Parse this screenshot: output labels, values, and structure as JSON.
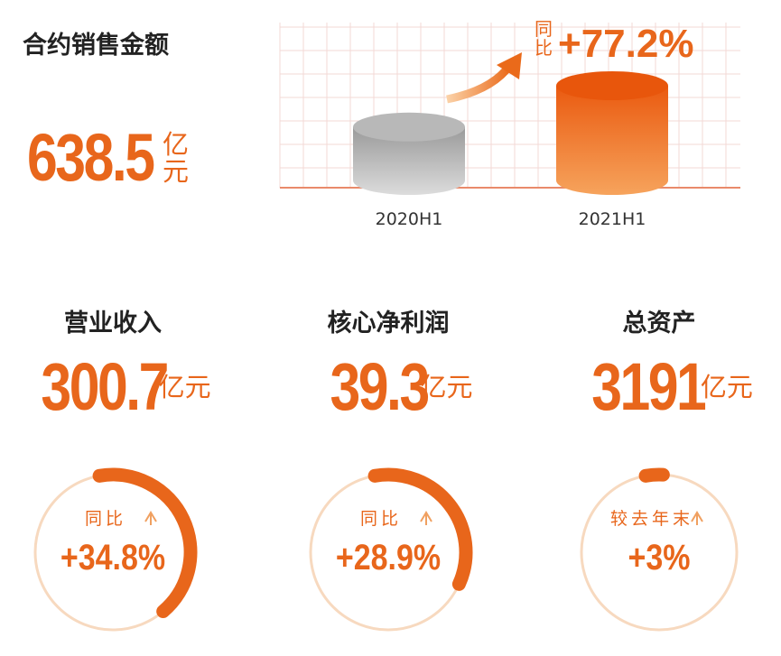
{
  "title": "合约销售金额",
  "amount": 638.5,
  "unit": "亿元",
  "chart": {
    "categories": [
      "2020H1",
      "2021H1"
    ],
    "values": [
      360,
      638.5
    ],
    "change_label": "同比",
    "change": "+77.2%"
  },
  "metrics": [
    {
      "title": "营业收入",
      "amount": 300.7,
      "unit": "亿元",
      "change_label": "同比",
      "change": {
        "value": 34.8,
        "label": "+34.8%"
      }
    },
    {
      "title": "核心净利润",
      "amount": 39.3,
      "unit": "亿元",
      "change_label": "同比",
      "change": {
        "value": 28.9,
        "label": "+28.9%"
      }
    },
    {
      "title": "总资产",
      "amount": 3191,
      "unit": "亿元",
      "change_label": "较去年末",
      "change": {
        "value": 3,
        "label": "+3%"
      }
    }
  ]
}
